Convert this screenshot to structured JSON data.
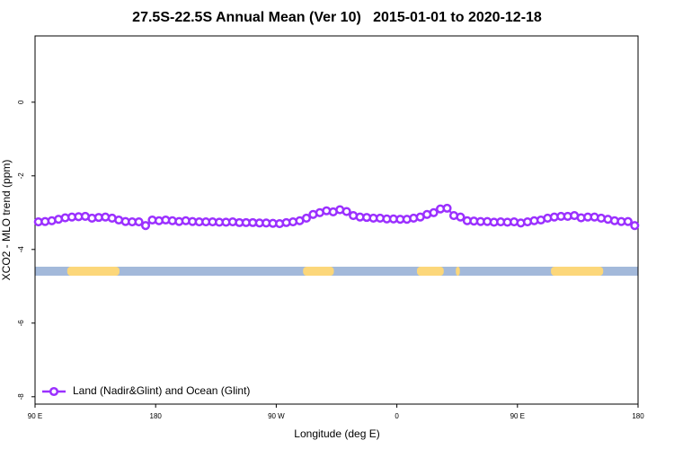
{
  "chart_data": {
    "type": "line",
    "title": "27.5S-22.5S Annual Mean (Ver 10)   2015-01-01 to 2020-12-18",
    "xlabel": "Longitude (deg E)",
    "ylabel": "XCO2 - MLO trend (ppm)",
    "xlim": [
      90,
      540
    ],
    "xticks": [
      {
        "value": 90,
        "label": "90 E"
      },
      {
        "value": 180,
        "label": "180"
      },
      {
        "value": 270,
        "label": "90 W"
      },
      {
        "value": 360,
        "label": "0"
      },
      {
        "value": 450,
        "label": "90 E"
      },
      {
        "value": 540,
        "label": "180"
      }
    ],
    "ylim": [
      -8.2,
      1.8
    ],
    "yticks": [
      0,
      -2,
      -4,
      -6,
      -8
    ],
    "legend": "bottom-left",
    "x": [
      92.5,
      97.5,
      102.5,
      107.5,
      112.5,
      117.5,
      122.5,
      127.5,
      132.5,
      137.5,
      142.5,
      147.5,
      152.5,
      157.5,
      162.5,
      167.5,
      172.5,
      177.5,
      182.5,
      187.5,
      192.5,
      197.5,
      202.5,
      207.5,
      212.5,
      217.5,
      222.5,
      227.5,
      232.5,
      237.5,
      242.5,
      247.5,
      252.5,
      257.5,
      262.5,
      267.5,
      272.5,
      277.5,
      282.5,
      287.5,
      292.5,
      297.5,
      302.5,
      307.5,
      312.5,
      317.5,
      322.5,
      327.5,
      332.5,
      337.5,
      342.5,
      347.5,
      352.5,
      357.5,
      362.5,
      367.5,
      372.5,
      377.5,
      382.5,
      387.5,
      392.5,
      397.5,
      402.5,
      407.5,
      412.5,
      417.5,
      422.5,
      427.5,
      432.5,
      437.5,
      442.5,
      447.5,
      452.5,
      457.5,
      462.5,
      467.5,
      472.5,
      477.5,
      482.5,
      487.5,
      492.5,
      497.5,
      502.5,
      507.5,
      512.5,
      517.5,
      522.5,
      527.5,
      532.5,
      537.5
    ],
    "series": [
      {
        "name": "Land (Nadir&Glint) and Ocean (Glint)",
        "color": "#9b30ff",
        "values": [
          -3.25,
          -3.24,
          -3.22,
          -3.18,
          -3.14,
          -3.12,
          -3.11,
          -3.1,
          -3.15,
          -3.13,
          -3.12,
          -3.15,
          -3.2,
          -3.24,
          -3.25,
          -3.25,
          -3.35,
          -3.2,
          -3.22,
          -3.2,
          -3.22,
          -3.24,
          -3.22,
          -3.24,
          -3.25,
          -3.25,
          -3.25,
          -3.26,
          -3.26,
          -3.25,
          -3.27,
          -3.27,
          -3.27,
          -3.28,
          -3.28,
          -3.29,
          -3.3,
          -3.27,
          -3.25,
          -3.22,
          -3.15,
          -3.05,
          -3.0,
          -2.95,
          -2.98,
          -2.92,
          -2.97,
          -3.08,
          -3.12,
          -3.13,
          -3.15,
          -3.15,
          -3.17,
          -3.17,
          -3.18,
          -3.18,
          -3.15,
          -3.12,
          -3.05,
          -3.0,
          -2.9,
          -2.88,
          -3.08,
          -3.12,
          -3.22,
          -3.23,
          -3.24,
          -3.24,
          -3.26,
          -3.25,
          -3.26,
          -3.25,
          -3.28,
          -3.25,
          -3.22,
          -3.2,
          -3.15,
          -3.12,
          -3.1,
          -3.1,
          -3.08,
          -3.14,
          -3.12,
          -3.12,
          -3.15,
          -3.18,
          -3.22,
          -3.24,
          -3.24,
          -3.35
        ]
      }
    ],
    "land_ranges": [
      [
        114,
        153
      ],
      [
        290,
        313
      ],
      [
        375,
        395
      ],
      [
        404,
        407
      ],
      [
        475,
        514
      ]
    ],
    "land_color": "#fcd77a",
    "ocean_color": "#a3b9da"
  }
}
